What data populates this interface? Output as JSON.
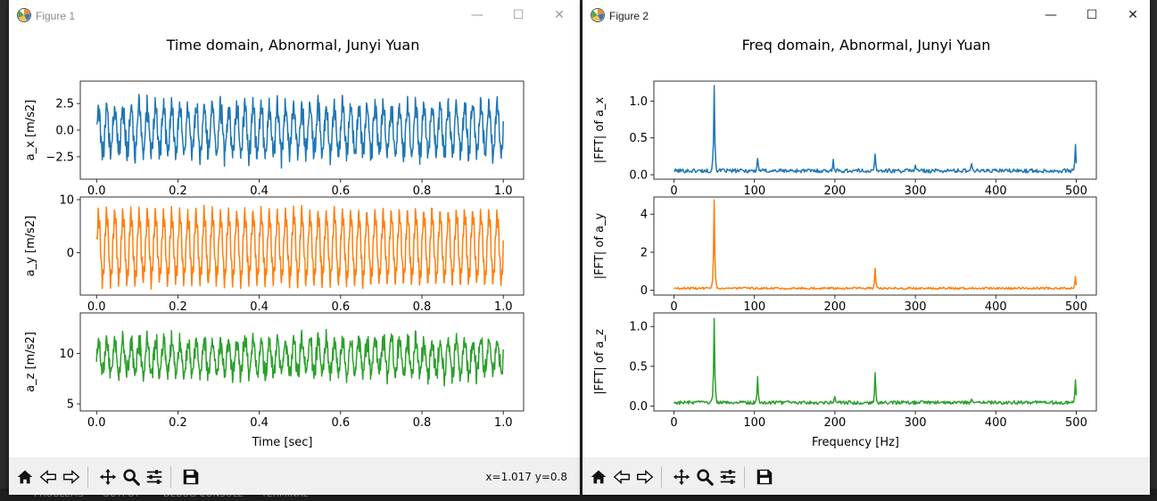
{
  "taskbar": {
    "tabs": [
      "PROBLEMS",
      "OUTPUT",
      "DEBUG CONSOLE",
      "TERMINAL"
    ]
  },
  "figure1": {
    "window_title": "Figure 1",
    "coord_readout": "x=1.017 y=0.8",
    "window_buttons": {
      "minimize": "—",
      "maximize": "☐",
      "close": "✕"
    }
  },
  "figure2": {
    "window_title": "Figure 2",
    "window_buttons": {
      "minimize": "—",
      "maximize": "☐",
      "close": "✕"
    }
  },
  "toolbar_icons": [
    "home-icon",
    "back-arrow-icon",
    "forward-arrow-icon",
    "pan-icon",
    "zoom-icon",
    "configure-subplots-icon",
    "save-icon"
  ],
  "colors": {
    "a_x": "#1f77b4",
    "a_y": "#ff7f0e",
    "a_z": "#2ca02c"
  },
  "chart_data": [
    {
      "type": "line",
      "figure": "figure1",
      "title": "Time domain, Abnormal, Junyi Yuan",
      "xlabel": "Time [sec]",
      "xlim": [
        -0.04,
        1.05
      ],
      "xticks": [
        0.0,
        0.2,
        0.4,
        0.6,
        0.8,
        1.0
      ],
      "xtick_labels": [
        "0.0",
        "0.2",
        "0.4",
        "0.6",
        "0.8",
        "1.0"
      ],
      "subplots": [
        {
          "ylabel": "a_x [m/s2]",
          "ylim": [
            -4.6,
            4.6
          ],
          "yticks": [
            -2.5,
            0.0,
            2.5
          ],
          "ytick_labels": [
            "−2.5",
            "0.0",
            "2.5"
          ],
          "color": "#1f77b4",
          "signal": {
            "n": 1000,
            "x_start": 0.0,
            "x_end": 1.0,
            "mean": 0.0,
            "amplitude": 2.2,
            "dominant_freq": 50,
            "noise": 1.0,
            "min": -4.2,
            "max": 4.0
          }
        },
        {
          "ylabel": "a_y [m/s2]",
          "ylim": [
            -8,
            10.5
          ],
          "yticks": [
            0,
            10
          ],
          "ytick_labels": [
            "0",
            "10"
          ],
          "color": "#ff7f0e",
          "signal": {
            "n": 1000,
            "x_start": 0.0,
            "x_end": 1.0,
            "mean": 1.0,
            "amplitude": 6.0,
            "dominant_freq": 50,
            "noise": 0.8,
            "min": -7.0,
            "max": 9.8
          }
        },
        {
          "ylabel": "a_z [m/s2]",
          "ylim": [
            4.3,
            14.0
          ],
          "yticks": [
            5,
            10
          ],
          "ytick_labels": [
            "5",
            "10"
          ],
          "color": "#2ca02c",
          "signal": {
            "n": 1000,
            "x_start": 0.0,
            "x_end": 1.0,
            "mean": 9.6,
            "amplitude": 1.6,
            "dominant_freq": 50,
            "noise": 1.1,
            "min": 4.8,
            "max": 13.5
          }
        }
      ]
    },
    {
      "type": "line",
      "figure": "figure2",
      "title": "Freq domain, Abnormal, Junyi Yuan",
      "xlabel": "Frequency [Hz]",
      "xlim": [
        -25,
        525
      ],
      "xticks": [
        0,
        100,
        200,
        300,
        400,
        500
      ],
      "xtick_labels": [
        "0",
        "100",
        "200",
        "300",
        "400",
        "500"
      ],
      "subplots": [
        {
          "ylabel": "|FFT| of a_x",
          "ylim": [
            -0.06,
            1.27
          ],
          "yticks": [
            0.0,
            0.5,
            1.0
          ],
          "ytick_labels": [
            "0.0",
            "0.5",
            "1.0"
          ],
          "color": "#1f77b4",
          "spectrum": {
            "n": 500,
            "floor": 0.06,
            "peaks": [
              [
                50,
                1.21
              ],
              [
                104,
                0.22
              ],
              [
                198,
                0.21
              ],
              [
                250,
                0.28
              ],
              [
                300,
                0.13
              ],
              [
                370,
                0.15
              ],
              [
                499,
                0.41
              ]
            ]
          }
        },
        {
          "ylabel": "|FFT| of a_y",
          "ylim": [
            -0.25,
            4.9
          ],
          "yticks": [
            0,
            2,
            4
          ],
          "ytick_labels": [
            "0",
            "2",
            "4"
          ],
          "color": "#ff7f0e",
          "spectrum": {
            "n": 500,
            "floor": 0.12,
            "peaks": [
              [
                50,
                4.75
              ],
              [
                250,
                1.15
              ],
              [
                499,
                0.72
              ]
            ]
          }
        },
        {
          "ylabel": "|FFT| of a_z",
          "ylim": [
            -0.06,
            1.17
          ],
          "yticks": [
            0.0,
            0.5,
            1.0
          ],
          "ytick_labels": [
            "0.0",
            "0.5",
            "1.0"
          ],
          "color": "#2ca02c",
          "spectrum": {
            "n": 500,
            "floor": 0.05,
            "peaks": [
              [
                50,
                1.1
              ],
              [
                104,
                0.37
              ],
              [
                200,
                0.12
              ],
              [
                250,
                0.42
              ],
              [
                370,
                0.09
              ],
              [
                499,
                0.33
              ]
            ]
          }
        }
      ]
    }
  ]
}
